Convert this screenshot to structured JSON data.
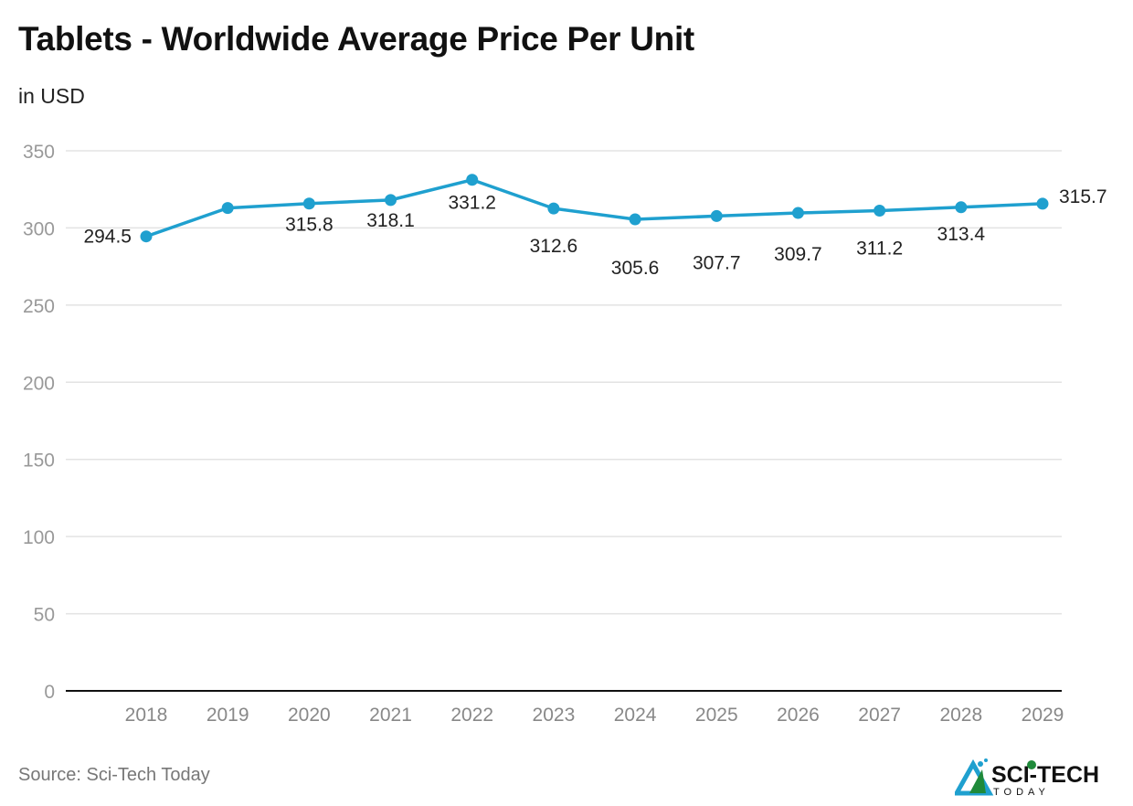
{
  "chart_data": {
    "type": "line",
    "title": "Tablets - Worldwide Average Price Per Unit",
    "subtitle": "in USD",
    "categories": [
      "2018",
      "2019",
      "2020",
      "2021",
      "2022",
      "2023",
      "2024",
      "2025",
      "2026",
      "2027",
      "2028",
      "2029"
    ],
    "series": [
      {
        "values": [
          294.5,
          312.9,
          315.8,
          318.1,
          331.2,
          312.6,
          305.6,
          307.7,
          309.7,
          311.2,
          313.4,
          315.7
        ]
      }
    ],
    "data_labels": [
      "294.5",
      null,
      "315.8",
      "318.1",
      "331.2",
      "312.6",
      "305.6",
      "307.7",
      "309.7",
      "311.2",
      "313.4",
      "315.7"
    ],
    "yticks": [
      "0",
      "50",
      "100",
      "150",
      "200",
      "250",
      "300",
      "350"
    ],
    "ylim": [
      0,
      350
    ],
    "grid": true,
    "line_color": "#1fa0cf",
    "source": "Source: Sci-Tech Today"
  },
  "logo": {
    "text": "SCI-TECH",
    "subtext": "TODAY"
  }
}
